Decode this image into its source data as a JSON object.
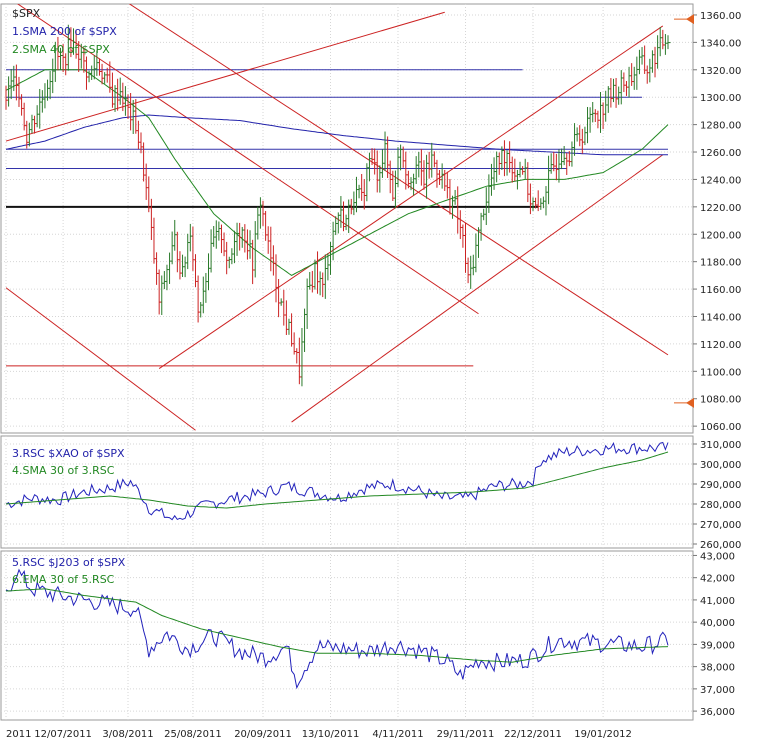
{
  "chart_data": [
    {
      "type": "bar",
      "panel": "main",
      "title": "$SPX",
      "legend": [
        "1.SMA 200  of $SPX",
        "2.SMA 40  of $SPX"
      ],
      "ylim": [
        1055,
        1368
      ],
      "yticks": [
        "1060.00",
        "1080.00",
        "1100.00",
        "1120.00",
        "1140.00",
        "1160.00",
        "1180.00",
        "1200.00",
        "1220.00",
        "1240.00",
        "1260.00",
        "1280.00",
        "1300.00",
        "1320.00",
        "1340.00",
        "1360.00"
      ],
      "ytick_values": [
        1060,
        1080,
        1100,
        1120,
        1140,
        1160,
        1180,
        1200,
        1220,
        1240,
        1260,
        1280,
        1300,
        1320,
        1340,
        1360
      ],
      "markers": [
        1357,
        1077
      ],
      "series": [
        {
          "name": "$SPX",
          "style": "hlc-bars",
          "color_up": "#2a7a2a",
          "color_down": "#cc2222",
          "anchors": [
            [
              0,
              1300
            ],
            [
              4,
              1315
            ],
            [
              8,
              1272
            ],
            [
              12,
              1290
            ],
            [
              16,
              1310
            ],
            [
              19,
              1330
            ],
            [
              22,
              1326
            ],
            [
              25,
              1340
            ],
            [
              28,
              1333
            ],
            [
              32,
              1315
            ],
            [
              35,
              1325
            ],
            [
              38,
              1315
            ],
            [
              41,
              1300
            ],
            [
              44,
              1305
            ],
            [
              47,
              1290
            ],
            [
              50,
              1280
            ],
            [
              53,
              1248
            ],
            [
              56,
              1200
            ],
            [
              59,
              1150
            ],
            [
              62,
              1175
            ],
            [
              65,
              1195
            ],
            [
              68,
              1170
            ],
            [
              71,
              1205
            ],
            [
              74,
              1145
            ],
            [
              77,
              1170
            ],
            [
              80,
              1195
            ],
            [
              83,
              1200
            ],
            [
              86,
              1175
            ],
            [
              89,
              1205
            ],
            [
              92,
              1200
            ],
            [
              95,
              1180
            ],
            [
              98,
              1225
            ],
            [
              101,
              1190
            ],
            [
              104,
              1165
            ],
            [
              107,
              1140
            ],
            [
              110,
              1125
            ],
            [
              113,
              1100
            ],
            [
              116,
              1155
            ],
            [
              119,
              1175
            ],
            [
              122,
              1160
            ],
            [
              125,
              1195
            ],
            [
              128,
              1215
            ],
            [
              131,
              1210
            ],
            [
              134,
              1230
            ],
            [
              137,
              1225
            ],
            [
              140,
              1255
            ],
            [
              143,
              1245
            ],
            [
              146,
              1260
            ],
            [
              149,
              1230
            ],
            [
              152,
              1265
            ],
            [
              155,
              1240
            ],
            [
              158,
              1250
            ],
            [
              161,
              1240
            ],
            [
              164,
              1255
            ],
            [
              167,
              1245
            ],
            [
              170,
              1230
            ],
            [
              173,
              1220
            ],
            [
              176,
              1195
            ],
            [
              178,
              1165
            ],
            [
              181,
              1190
            ],
            [
              184,
              1220
            ],
            [
              187,
              1240
            ],
            [
              190,
              1255
            ],
            [
              193,
              1260
            ],
            [
              196,
              1245
            ],
            [
              199,
              1250
            ],
            [
              202,
              1225
            ],
            [
              205,
              1215
            ],
            [
              208,
              1235
            ],
            [
              211,
              1250
            ],
            [
              214,
              1260
            ],
            [
              217,
              1260
            ],
            [
              220,
              1270
            ],
            [
              223,
              1275
            ],
            [
              226,
              1290
            ],
            [
              229,
              1290
            ],
            [
              232,
              1300
            ],
            [
              235,
              1305
            ],
            [
              238,
              1310
            ],
            [
              241,
              1315
            ],
            [
              244,
              1325
            ],
            [
              247,
              1320
            ],
            [
              250,
              1330
            ],
            [
              253,
              1340
            ],
            [
              255,
              1345
            ]
          ]
        },
        {
          "name": "1.SMA 200  of $SPX",
          "color": "#2222aa",
          "anchors": [
            [
              0,
              1262
            ],
            [
              15,
              1268
            ],
            [
              30,
              1278
            ],
            [
              45,
              1285
            ],
            [
              55,
              1287
            ],
            [
              70,
              1285
            ],
            [
              90,
              1283
            ],
            [
              110,
              1277
            ],
            [
              130,
              1272
            ],
            [
              150,
              1268
            ],
            [
              170,
              1265
            ],
            [
              190,
              1262
            ],
            [
              210,
              1260
            ],
            [
              230,
              1258
            ],
            [
              255,
              1258
            ]
          ]
        },
        {
          "name": "2.SMA 40  of $SPX",
          "color": "#228822",
          "anchors": [
            [
              0,
              1305
            ],
            [
              15,
              1320
            ],
            [
              30,
              1320
            ],
            [
              45,
              1300
            ],
            [
              55,
              1285
            ],
            [
              65,
              1255
            ],
            [
              80,
              1215
            ],
            [
              95,
              1190
            ],
            [
              110,
              1170
            ],
            [
              125,
              1185
            ],
            [
              140,
              1200
            ],
            [
              155,
              1215
            ],
            [
              170,
              1225
            ],
            [
              185,
              1235
            ],
            [
              200,
              1240
            ],
            [
              215,
              1240
            ],
            [
              230,
              1245
            ],
            [
              245,
              1262
            ],
            [
              255,
              1280
            ]
          ]
        }
      ],
      "x": [
        "2011",
        "12/07/2011",
        "3/08/2011",
        "25/08/2011",
        "20/09/2011",
        "13/10/2011",
        "4/11/2011",
        "29/11/2011",
        "22/12/2011",
        "19/01/2012"
      ],
      "x_index": [
        0,
        22,
        47,
        72,
        99,
        125,
        151,
        177,
        203,
        230
      ]
    },
    {
      "type": "line",
      "panel": "rsc1",
      "legend": [
        "3.RSC  $XAO of $SPX",
        "4.SMA 30  of 3.RSC"
      ],
      "ylim": [
        258000,
        314000
      ],
      "yticks": [
        "260,000",
        "270,000",
        "280,000",
        "290,000",
        "300,000",
        "310,000"
      ],
      "ytick_values": [
        260000,
        270000,
        280000,
        290000,
        300000,
        310000
      ],
      "series": [
        {
          "name": "3.RSC  $XAO of $SPX",
          "color": "#2222bb",
          "anchors": [
            [
              0,
              280000
            ],
            [
              10,
              283000
            ],
            [
              20,
              282000
            ],
            [
              30,
              286000
            ],
            [
              40,
              288000
            ],
            [
              48,
              291000
            ],
            [
              52,
              285000
            ],
            [
              55,
              278000
            ],
            [
              60,
              275000
            ],
            [
              65,
              272000
            ],
            [
              70,
              275000
            ],
            [
              78,
              280000
            ],
            [
              88,
              283000
            ],
            [
              98,
              285000
            ],
            [
              108,
              289000
            ],
            [
              118,
              286000
            ],
            [
              128,
              283000
            ],
            [
              138,
              288000
            ],
            [
              148,
              290000
            ],
            [
              158,
              287000
            ],
            [
              168,
              283000
            ],
            [
              178,
              283000
            ],
            [
              188,
              289000
            ],
            [
              198,
              290000
            ],
            [
              203,
              292000
            ],
            [
              206,
              302000
            ],
            [
              215,
              306000
            ],
            [
              225,
              307000
            ],
            [
              235,
              308000
            ],
            [
              245,
              308000
            ],
            [
              255,
              308000
            ]
          ]
        },
        {
          "name": "4.SMA 30  of 3.RSC",
          "color": "#228822",
          "anchors": [
            [
              0,
              280000
            ],
            [
              20,
              282000
            ],
            [
              40,
              284000
            ],
            [
              55,
              282000
            ],
            [
              70,
              279000
            ],
            [
              85,
              278000
            ],
            [
              100,
              280000
            ],
            [
              120,
              282000
            ],
            [
              140,
              284000
            ],
            [
              160,
              285000
            ],
            [
              180,
              286000
            ],
            [
              200,
              288000
            ],
            [
              215,
              293000
            ],
            [
              230,
              298000
            ],
            [
              245,
              302000
            ],
            [
              255,
              306000
            ]
          ]
        }
      ]
    },
    {
      "type": "line",
      "panel": "rsc2",
      "legend": [
        "5.RSC  $J203 of $SPX",
        "6.EMA 30  of 5.RSC"
      ],
      "ylim": [
        35600,
        43200
      ],
      "yticks": [
        "36,000",
        "37,000",
        "38,000",
        "39,000",
        "40,000",
        "41,000",
        "42,000",
        "43,000"
      ],
      "ytick_values": [
        36000,
        37000,
        38000,
        39000,
        40000,
        41000,
        42000,
        43000
      ],
      "series": [
        {
          "name": "5.RSC  $J203 of $SPX",
          "color": "#2222bb",
          "anchors": [
            [
              0,
              41200
            ],
            [
              4,
              42300
            ],
            [
              10,
              41500
            ],
            [
              20,
              41200
            ],
            [
              30,
              41000
            ],
            [
              40,
              40800
            ],
            [
              50,
              40600
            ],
            [
              55,
              38800
            ],
            [
              62,
              39500
            ],
            [
              70,
              38800
            ],
            [
              80,
              39400
            ],
            [
              90,
              38700
            ],
            [
              100,
              38400
            ],
            [
              108,
              38900
            ],
            [
              112,
              37400
            ],
            [
              120,
              38900
            ],
            [
              130,
              38800
            ],
            [
              140,
              38700
            ],
            [
              150,
              39000
            ],
            [
              160,
              38700
            ],
            [
              170,
              38200
            ],
            [
              175,
              37600
            ],
            [
              182,
              38300
            ],
            [
              190,
              38200
            ],
            [
              200,
              38300
            ],
            [
              206,
              38700
            ],
            [
              212,
              39200
            ],
            [
              225,
              39100
            ],
            [
              235,
              39000
            ],
            [
              245,
              38900
            ],
            [
              255,
              39200
            ]
          ]
        },
        {
          "name": "6.EMA 30  of 5.RSC",
          "color": "#228822",
          "anchors": [
            [
              0,
              41400
            ],
            [
              15,
              41500
            ],
            [
              30,
              41200
            ],
            [
              50,
              40900
            ],
            [
              60,
              40300
            ],
            [
              75,
              39700
            ],
            [
              90,
              39300
            ],
            [
              105,
              38900
            ],
            [
              120,
              38600
            ],
            [
              140,
              38600
            ],
            [
              160,
              38500
            ],
            [
              180,
              38300
            ],
            [
              195,
              38200
            ],
            [
              210,
              38500
            ],
            [
              230,
              38800
            ],
            [
              255,
              38900
            ]
          ]
        }
      ]
    }
  ],
  "trendlines_main": [
    {
      "p1": [
        0,
        1320
      ],
      "p2": [
        199,
        1320
      ],
      "color": "#3333aa"
    },
    {
      "p1": [
        0,
        1300
      ],
      "p2": [
        245,
        1300
      ],
      "color": "#3333aa"
    },
    {
      "p1": [
        0,
        1262
      ],
      "p2": [
        255,
        1262
      ],
      "color": "#3333aa"
    },
    {
      "p1": [
        0,
        1248
      ],
      "p2": [
        216,
        1248
      ],
      "color": "#3333aa"
    },
    {
      "p1": [
        0,
        1220
      ],
      "p2": [
        205,
        1220
      ],
      "color": "#111111",
      "width": 2
    },
    {
      "p1": [
        0,
        1104
      ],
      "p2": [
        180,
        1104
      ],
      "color": "#cc2222"
    },
    {
      "p1": [
        3,
        1370
      ],
      "p2": [
        182,
        1142
      ],
      "color": "#cc2222"
    },
    {
      "p1": [
        0,
        1161
      ],
      "p2": [
        73,
        1057
      ],
      "color": "#cc2222"
    },
    {
      "p1": [
        0,
        1268
      ],
      "p2": [
        169,
        1362
      ],
      "color": "#cc2222"
    },
    {
      "p1": [
        59,
        1102
      ],
      "p2": [
        253,
        1352
      ],
      "color": "#cc2222"
    },
    {
      "p1": [
        110,
        1063
      ],
      "p2": [
        253,
        1258
      ],
      "color": "#cc2222"
    },
    {
      "p1": [
        46,
        1370
      ],
      "p2": [
        255,
        1112
      ],
      "color": "#cc2222"
    }
  ]
}
